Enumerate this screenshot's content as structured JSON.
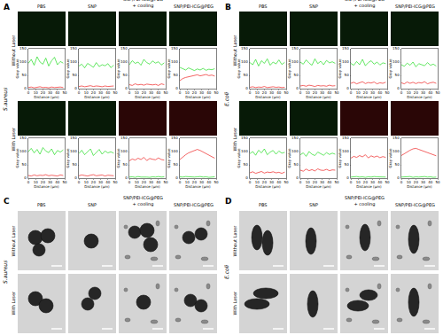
{
  "chart_data": [
    {
      "type": "line",
      "xlabel": "Distance (μm)",
      "ylabel": "Gray value",
      "x": [
        0,
        4,
        8,
        12,
        16,
        20,
        24,
        28,
        32,
        36,
        40,
        44,
        48
      ],
      "xlim": [
        0,
        50
      ],
      "xticks": [
        0,
        10,
        20,
        30,
        40,
        50
      ],
      "ylim": [
        0,
        150
      ],
      "yticks": [
        0,
        50,
        100,
        150
      ],
      "series": [
        {
          "color": "#22dd22",
          "values": [
            95,
            110,
            88,
            120,
            100,
            92,
            115,
            85,
            105,
            118,
            90,
            102,
            96
          ]
        },
        {
          "color": "#ee2222",
          "values": [
            4,
            6,
            3,
            5,
            7,
            4,
            5,
            3,
            6,
            4,
            5,
            6,
            4
          ]
        }
      ]
    },
    {
      "type": "line",
      "xlabel": "Distance (μm)",
      "ylabel": "Gray value",
      "x": [
        0,
        4,
        8,
        12,
        16,
        20,
        24,
        28,
        32,
        36,
        40,
        44,
        48
      ],
      "xlim": [
        0,
        50
      ],
      "xticks": [
        0,
        10,
        20,
        30,
        40,
        50
      ],
      "ylim": [
        0,
        150
      ],
      "yticks": [
        0,
        50,
        100,
        150
      ],
      "series": [
        {
          "color": "#22dd22",
          "values": [
            85,
            92,
            78,
            95,
            88,
            80,
            98,
            83,
            90,
            86,
            94,
            79,
            88
          ]
        },
        {
          "color": "#ee2222",
          "values": [
            8,
            10,
            7,
            9,
            11,
            8,
            10,
            9,
            7,
            10,
            8,
            9,
            10
          ]
        }
      ]
    },
    {
      "type": "line",
      "xlabel": "Distance (μm)",
      "ylabel": "Gray value",
      "x": [
        0,
        4,
        8,
        12,
        16,
        20,
        24,
        28,
        32,
        36,
        40,
        44,
        48
      ],
      "xlim": [
        0,
        50
      ],
      "xticks": [
        0,
        10,
        20,
        30,
        40,
        50
      ],
      "ylim": [
        0,
        150
      ],
      "yticks": [
        0,
        50,
        100,
        150
      ],
      "series": [
        {
          "color": "#22dd22",
          "values": [
            90,
            105,
            95,
            100,
            88,
            110,
            98,
            92,
            104,
            96,
            101,
            89,
            97
          ]
        },
        {
          "color": "#ee2222",
          "values": [
            15,
            12,
            18,
            14,
            16,
            13,
            17,
            15,
            14,
            16,
            12,
            18,
            15
          ]
        }
      ]
    },
    {
      "type": "line",
      "xlabel": "Distance (μm)",
      "ylabel": "Gray value",
      "x": [
        0,
        4,
        8,
        12,
        16,
        20,
        24,
        28,
        32,
        36,
        40,
        44,
        48
      ],
      "xlim": [
        0,
        50
      ],
      "xticks": [
        0,
        10,
        20,
        30,
        40,
        50
      ],
      "ylim": [
        0,
        150
      ],
      "yticks": [
        0,
        50,
        100,
        150
      ],
      "series": [
        {
          "color": "#22dd22",
          "values": [
            80,
            75,
            70,
            78,
            72,
            68,
            74,
            70,
            76,
            69,
            73,
            71,
            75
          ]
        },
        {
          "color": "#ee2222",
          "values": [
            30,
            38,
            42,
            45,
            48,
            50,
            52,
            48,
            50,
            53,
            49,
            51,
            47
          ]
        }
      ]
    },
    {
      "type": "line",
      "xlabel": "Distance (μm)",
      "ylabel": "Gray value",
      "x": [
        0,
        4,
        8,
        12,
        16,
        20,
        24,
        28,
        32,
        36,
        40,
        44,
        48
      ],
      "xlim": [
        0,
        50
      ],
      "xticks": [
        0,
        10,
        20,
        30,
        40,
        50
      ],
      "ylim": [
        0,
        150
      ],
      "yticks": [
        0,
        50,
        100,
        150
      ],
      "series": [
        {
          "color": "#22dd22",
          "values": [
            100,
            112,
            95,
            108,
            90,
            115,
            102,
            96,
            110,
            88,
            104,
            98,
            106
          ]
        },
        {
          "color": "#ee2222",
          "values": [
            10,
            8,
            12,
            9,
            11,
            10,
            13,
            9,
            11,
            10,
            8,
            12,
            10
          ]
        }
      ]
    },
    {
      "type": "line",
      "xlabel": "Distance (μm)",
      "ylabel": "Gray value",
      "x": [
        0,
        4,
        8,
        12,
        16,
        20,
        24,
        28,
        32,
        36,
        40,
        44,
        48
      ],
      "xlim": [
        0,
        50
      ],
      "xticks": [
        0,
        10,
        20,
        30,
        40,
        50
      ],
      "ylim": [
        0,
        150
      ],
      "yticks": [
        0,
        50,
        100,
        150
      ],
      "series": [
        {
          "color": "#22dd22",
          "values": [
            92,
            105,
            88,
            100,
            110,
            85,
            98,
            108,
            90,
            102,
            95,
            99,
            94
          ]
        },
        {
          "color": "#ee2222",
          "values": [
            9,
            12,
            10,
            8,
            11,
            13,
            9,
            10,
            12,
            8,
            11,
            10,
            9
          ]
        }
      ]
    },
    {
      "type": "line",
      "xlabel": "Distance (μm)",
      "ylabel": "Gray value",
      "x": [
        0,
        4,
        8,
        12,
        16,
        20,
        24,
        28,
        32,
        36,
        40,
        44,
        48
      ],
      "xlim": [
        0,
        50
      ],
      "xticks": [
        0,
        10,
        20,
        30,
        40,
        50
      ],
      "ylim": [
        0,
        150
      ],
      "yticks": [
        0,
        50,
        100,
        150
      ],
      "series": [
        {
          "color": "#22dd22",
          "values": [
            4,
            5,
            3,
            6,
            4,
            5,
            4,
            3,
            5,
            4,
            6,
            4,
            5
          ]
        },
        {
          "color": "#ee2222",
          "values": [
            65,
            72,
            68,
            75,
            70,
            78,
            66,
            74,
            71,
            69,
            76,
            70,
            68
          ]
        }
      ]
    },
    {
      "type": "line",
      "xlabel": "Distance (μm)",
      "ylabel": "Gray value",
      "x": [
        0,
        4,
        8,
        12,
        16,
        20,
        24,
        28,
        32,
        36,
        40,
        44,
        48
      ],
      "xlim": [
        0,
        50
      ],
      "xticks": [
        0,
        10,
        20,
        30,
        40,
        50
      ],
      "ylim": [
        0,
        150
      ],
      "yticks": [
        0,
        50,
        100,
        150
      ],
      "series": [
        {
          "color": "#22dd22",
          "values": [
            5,
            4,
            6,
            5,
            3,
            4,
            5,
            6,
            4,
            5,
            3,
            4,
            5
          ]
        },
        {
          "color": "#ee2222",
          "values": [
            70,
            80,
            88,
            95,
            100,
            105,
            108,
            104,
            98,
            92,
            86,
            80,
            75
          ]
        }
      ]
    },
    {
      "type": "line",
      "xlabel": "Distance (μm)",
      "ylabel": "Gray value",
      "x": [
        0,
        4,
        8,
        12,
        16,
        20,
        24,
        28,
        32,
        36,
        40,
        44,
        48
      ],
      "xlim": [
        0,
        50
      ],
      "xticks": [
        0,
        10,
        20,
        30,
        40,
        50
      ],
      "ylim": [
        0,
        150
      ],
      "yticks": [
        0,
        50,
        100,
        150
      ],
      "series": [
        {
          "color": "#22dd22",
          "values": [
            98,
            90,
            110,
            85,
            105,
            95,
            112,
            88,
            100,
            93,
            108,
            91,
            99
          ]
        },
        {
          "color": "#ee2222",
          "values": [
            5,
            7,
            4,
            6,
            5,
            8,
            4,
            6,
            7,
            5,
            6,
            4,
            5
          ]
        }
      ]
    },
    {
      "type": "line",
      "xlabel": "Distance (μm)",
      "ylabel": "Gray value",
      "x": [
        0,
        4,
        8,
        12,
        16,
        20,
        24,
        28,
        32,
        36,
        40,
        44,
        48
      ],
      "xlim": [
        0,
        50
      ],
      "xticks": [
        0,
        10,
        20,
        30,
        40,
        50
      ],
      "ylim": [
        0,
        150
      ],
      "yticks": [
        0,
        50,
        100,
        150
      ],
      "series": [
        {
          "color": "#22dd22",
          "values": [
            100,
            92,
            108,
            96,
            88,
            112,
            94,
            103,
            90,
            106,
            97,
            101,
            95
          ]
        },
        {
          "color": "#ee2222",
          "values": [
            10,
            12,
            9,
            13,
            11,
            8,
            12,
            10,
            11,
            9,
            13,
            10,
            11
          ]
        }
      ]
    },
    {
      "type": "line",
      "xlabel": "Distance (μm)",
      "ylabel": "Gray value",
      "x": [
        0,
        4,
        8,
        12,
        16,
        20,
        24,
        28,
        32,
        36,
        40,
        44,
        48
      ],
      "xlim": [
        0,
        50
      ],
      "xticks": [
        0,
        10,
        20,
        30,
        40,
        50
      ],
      "ylim": [
        0,
        150
      ],
      "yticks": [
        0,
        50,
        100,
        150
      ],
      "series": [
        {
          "color": "#22dd22",
          "values": [
            95,
            88,
            102,
            90,
            110,
            86,
            98,
            105,
            92,
            100,
            89,
            97,
            94
          ]
        },
        {
          "color": "#ee2222",
          "values": [
            20,
            24,
            18,
            22,
            26,
            19,
            23,
            21,
            25,
            18,
            22,
            20,
            24
          ]
        }
      ]
    },
    {
      "type": "line",
      "xlabel": "Distance (μm)",
      "ylabel": "Gray value",
      "x": [
        0,
        4,
        8,
        12,
        16,
        20,
        24,
        28,
        32,
        36,
        40,
        44,
        48
      ],
      "xlim": [
        0,
        50
      ],
      "xticks": [
        0,
        10,
        20,
        30,
        40,
        50
      ],
      "ylim": [
        0,
        150
      ],
      "yticks": [
        0,
        50,
        100,
        150
      ],
      "series": [
        {
          "color": "#22dd22",
          "values": [
            90,
            84,
            96,
            88,
            100,
            82,
            94,
            90,
            86,
            98,
            88,
            92,
            85
          ]
        },
        {
          "color": "#ee2222",
          "values": [
            22,
            18,
            25,
            20,
            24,
            19,
            23,
            21,
            26,
            18,
            22,
            24,
            20
          ]
        }
      ]
    },
    {
      "type": "line",
      "xlabel": "Distance (μm)",
      "ylabel": "Gray value",
      "x": [
        0,
        4,
        8,
        12,
        16,
        20,
        24,
        28,
        32,
        36,
        40,
        44,
        48
      ],
      "xlim": [
        0,
        50
      ],
      "xticks": [
        0,
        10,
        20,
        30,
        40,
        50
      ],
      "ylim": [
        0,
        150
      ],
      "yticks": [
        0,
        50,
        100,
        150
      ],
      "series": [
        {
          "color": "#22dd22",
          "values": [
            92,
            100,
            86,
            105,
            95,
            110,
            88,
            98,
            104,
            90,
            102,
            94,
            97
          ]
        },
        {
          "color": "#ee2222",
          "values": [
            20,
            24,
            18,
            22,
            25,
            19,
            23,
            21,
            24,
            20,
            22,
            18,
            23
          ]
        }
      ]
    },
    {
      "type": "line",
      "xlabel": "Distance (μm)",
      "ylabel": "Gray value",
      "x": [
        0,
        4,
        8,
        12,
        16,
        20,
        24,
        28,
        32,
        36,
        40,
        44,
        48
      ],
      "xlim": [
        0,
        50
      ],
      "xticks": [
        0,
        10,
        20,
        30,
        40,
        50
      ],
      "ylim": [
        0,
        150
      ],
      "yticks": [
        0,
        50,
        100,
        150
      ],
      "series": [
        {
          "color": "#22dd22",
          "values": [
            88,
            95,
            82,
            100,
            90,
            85,
            98,
            92,
            86,
            96,
            89,
            94,
            90
          ]
        },
        {
          "color": "#ee2222",
          "values": [
            30,
            26,
            34,
            28,
            32,
            27,
            35,
            30,
            29,
            33,
            28,
            31,
            30
          ]
        }
      ]
    },
    {
      "type": "line",
      "xlabel": "Distance (μm)",
      "ylabel": "Gray value",
      "x": [
        0,
        4,
        8,
        12,
        16,
        20,
        24,
        28,
        32,
        36,
        40,
        44,
        48
      ],
      "xlim": [
        0,
        50
      ],
      "xticks": [
        0,
        10,
        20,
        30,
        40,
        50
      ],
      "ylim": [
        0,
        150
      ],
      "yticks": [
        0,
        50,
        100,
        150
      ],
      "series": [
        {
          "color": "#22dd22",
          "values": [
            4,
            5,
            6,
            4,
            5,
            3,
            5,
            4,
            6,
            5,
            4,
            5,
            4
          ]
        },
        {
          "color": "#ee2222",
          "values": [
            75,
            82,
            78,
            85,
            80,
            88,
            76,
            84,
            79,
            83,
            77,
            81,
            78
          ]
        }
      ]
    },
    {
      "type": "line",
      "xlabel": "Distance (μm)",
      "ylabel": "Gray value",
      "x": [
        0,
        4,
        8,
        12,
        16,
        20,
        24,
        28,
        32,
        36,
        40,
        44,
        48
      ],
      "xlim": [
        0,
        50
      ],
      "xticks": [
        0,
        10,
        20,
        30,
        40,
        50
      ],
      "ylim": [
        0,
        150
      ],
      "yticks": [
        0,
        50,
        100,
        150
      ],
      "series": [
        {
          "color": "#22dd22",
          "values": [
            4,
            5,
            4,
            6,
            3,
            5,
            4,
            5,
            6,
            4,
            5,
            3,
            4
          ]
        },
        {
          "color": "#ee2222",
          "values": [
            85,
            92,
            98,
            105,
            110,
            112,
            108,
            104,
            100,
            96,
            90,
            88,
            84
          ]
        }
      ]
    }
  ],
  "figure": {
    "columns": [
      [
        "PBS"
      ],
      [
        "SNP"
      ],
      [
        "SNP/PEI-ICG@PEG",
        "+ cooling"
      ],
      [
        "SNP/PEI-ICG@PEG"
      ]
    ],
    "rows": [
      "Without Laser",
      "With Laser"
    ],
    "fluorescence_panels": [
      {
        "letter": "A",
        "organism": "S.aureus"
      },
      {
        "letter": "B",
        "organism": "E.coli"
      }
    ],
    "tem_panels": [
      {
        "letter": "C",
        "organism": "S.aureus"
      },
      {
        "letter": "D",
        "organism": "E.coli"
      }
    ]
  }
}
